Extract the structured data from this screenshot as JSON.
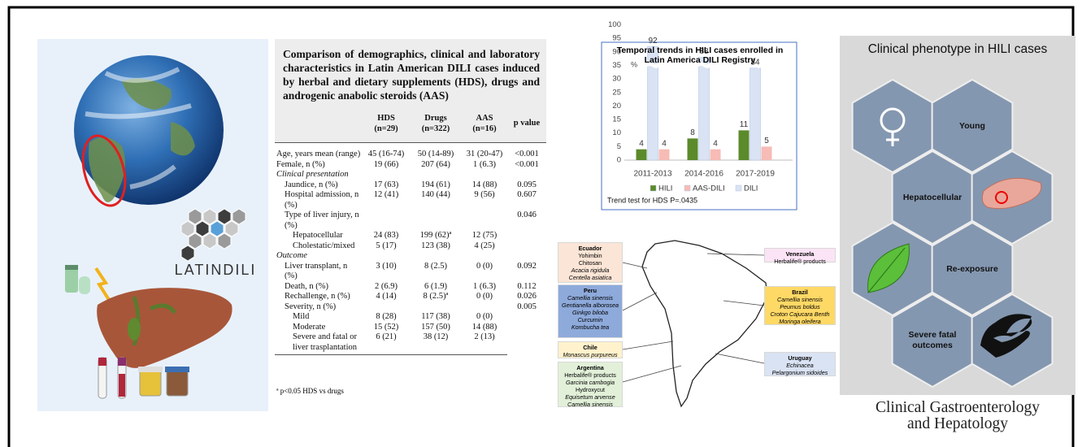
{
  "left_panel": {
    "logo_text": "LATINDILI"
  },
  "table": {
    "title": "Comparison of demographics, clinical and laboratory characteristics in Latin American DILI cases induced by herbal and dietary supplements (HDS), drugs and androgenic anabolic steroids (AAS)",
    "columns": [
      "HDS",
      "Drugs",
      "AAS",
      "p value"
    ],
    "column_n": [
      "(n=29)",
      "(n=322)",
      "(n=16)"
    ],
    "groups": [
      {
        "rows": [
          {
            "label": "Age, years mean (range)",
            "values": [
              "45 (16-74)",
              "50 (14-89)",
              "31 (20-47)",
              "<0.001"
            ]
          },
          {
            "label": "Female, n (%)",
            "values": [
              "19 (66)",
              "207 (64)",
              "1 (6.3)",
              "<0.001"
            ]
          }
        ]
      },
      {
        "heading": "Clinical presentation",
        "rows": [
          {
            "label": "Jaundice, n (%)",
            "values": [
              "17 (63)",
              "194 (61)",
              "14 (88)",
              "0.095"
            ]
          },
          {
            "label": "Hospital admission, n (%)",
            "values": [
              "12 (41)",
              "140 (44)",
              "9 (56)",
              "0.607"
            ]
          },
          {
            "label": "Type of liver injury, n (%)",
            "values": [
              null,
              null,
              null,
              "0.046"
            ],
            "sub_rows": [
              {
                "label": "Hepatocellular",
                "values": [
                  "24 (83)",
                  "199 (62)ª",
                  "12 (75)"
                ]
              },
              {
                "label": "Cholestatic/mixed",
                "values": [
                  "5 (17)",
                  "123 (38)",
                  "4 (25)"
                ]
              }
            ]
          }
        ]
      },
      {
        "heading": "Outcome",
        "rows": [
          {
            "label": "Liver transplant, n (%)",
            "values": [
              "3 (10)",
              "8 (2.5)",
              "0 (0)",
              "0.092"
            ]
          },
          {
            "label": "Death, n (%)",
            "values": [
              "2 (6.9)",
              "6 (1.9)",
              "1 (6.3)",
              "0.112"
            ]
          },
          {
            "label": "Rechallenge, n (%)",
            "values": [
              "4 (14)",
              "8 (2.5)ª",
              "0 (0)",
              "0.026"
            ]
          },
          {
            "label": "Severity, n (%)",
            "values": [
              null,
              null,
              null,
              "0.005"
            ],
            "sub_rows": [
              {
                "label": "Mild",
                "values": [
                  "8 (28)",
                  "117 (38)",
                  "0 (0)"
                ]
              },
              {
                "label": "Moderate",
                "values": [
                  "15 (52)",
                  "157 (50)",
                  "14 (88)"
                ]
              },
              {
                "label": "Severe and fatal or liver trasplantation",
                "values": [
                  "6 (21)",
                  "38 (12)",
                  "2 (13)"
                ]
              }
            ]
          }
        ]
      }
    ],
    "footnote": "ª p<0.05 HDS vs drugs"
  },
  "chart_data": {
    "type": "bar",
    "title": "Temporal trends in HILI cases enrolled in Latin America DILI Registry",
    "y_label": "%",
    "categories": [
      "2011-2013",
      "2014-2016",
      "2017-2019"
    ],
    "series": [
      {
        "name": "HILI",
        "color": "#5b8a2b",
        "values": [
          4,
          8,
          11
        ]
      },
      {
        "name": "AAS-DILI",
        "color": "#f6bcb5",
        "values": [
          4,
          4,
          5
        ]
      },
      {
        "name": "DILI",
        "color": "#dae3f3",
        "values": [
          92,
          88,
          84
        ]
      }
    ],
    "ylim": [
      0,
      100
    ],
    "yticks": [
      0,
      5,
      10,
      15,
      20,
      25,
      30,
      35,
      90,
      95,
      100
    ],
    "y_break": [
      35,
      90
    ],
    "legend": "bottom",
    "note": "Trend test for HDS P=.0435"
  },
  "map": {
    "countries": [
      {
        "name": "Ecuador",
        "products": [
          "Yohimbin",
          "Chitosan",
          "Acacia rigidula",
          "Centella asiatica"
        ],
        "italic": [
          false,
          false,
          true,
          true
        ],
        "color": "#fbe5d6"
      },
      {
        "name": "Peru",
        "products": [
          "Camellia sinensis",
          "Gentianella alborosea",
          "Ginkgo biloba",
          "Curcumin",
          "Kombucha tea"
        ],
        "italic": [
          true,
          true,
          true,
          true,
          true
        ],
        "color": "#8eaadb"
      },
      {
        "name": "Chile",
        "products": [
          "Monascus purpureus"
        ],
        "italic": [
          true
        ],
        "color": "#fff2cc"
      },
      {
        "name": "Argentina",
        "products": [
          "Herbalife® products",
          "Garcinia cambogia",
          "Hydroxycut",
          "Equisetum arvense",
          "Camellia sinensis"
        ],
        "italic": [
          false,
          true,
          false,
          true,
          true
        ],
        "color": "#e2f0d9"
      },
      {
        "name": "Venezuela",
        "products": [
          "Herbalife® products"
        ],
        "italic": [
          false
        ],
        "color": "#fbe4f5"
      },
      {
        "name": "Brazil",
        "products": [
          "Camellia sinensis",
          "Peumus boldus",
          "Croton Cajucara Benth",
          "Moringa oleifera"
        ],
        "italic": [
          true,
          true,
          true,
          true
        ],
        "color": "#ffd966"
      },
      {
        "name": "Uruguay",
        "products": [
          "Echinacea",
          "Pelargonium sidoides"
        ],
        "italic": [
          true,
          true
        ],
        "color": "#dae3f3"
      }
    ]
  },
  "phenotype": {
    "title": "Clinical phenotype in HILI cases",
    "features": [
      "Young",
      "Hepatocellular",
      "Re-exposure",
      "Severe fatal outcomes"
    ]
  },
  "journal": [
    "Clinical Gastroenterology",
    "and Hepatology"
  ]
}
